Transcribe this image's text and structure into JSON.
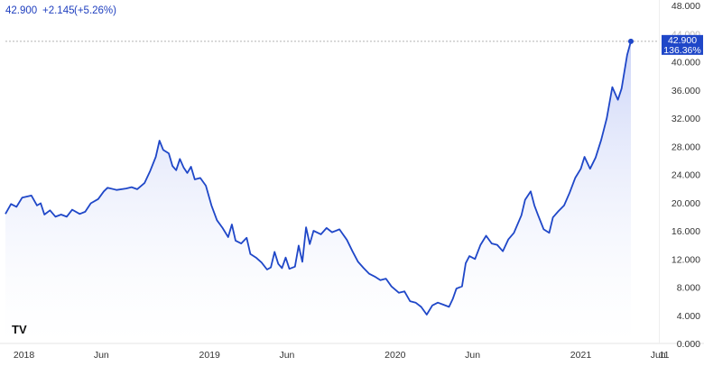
{
  "header": {
    "last_price": "42.900",
    "change": "+2.145",
    "change_percent": "(+5.26%)"
  },
  "price_label": {
    "value": "42.900",
    "percent": "136.36%"
  },
  "watermark": "TV",
  "colors": {
    "line": "#1f47c8",
    "fill_top": "#c9d2f7",
    "fill_bottom": "#ffffff",
    "badge": "#1f47c8",
    "axis": "#e6e6e6",
    "dashed": "#9a9a9a"
  },
  "chart_data": {
    "type": "area",
    "title": "",
    "xlabel": "",
    "ylabel": "",
    "ylim": [
      0,
      48
    ],
    "y_ticks": [
      "48.000",
      "44.000",
      "40.000",
      "36.000",
      "32.000",
      "28.000",
      "24.000",
      "20.000",
      "16.000",
      "12.000",
      "8.000",
      "4.000",
      "0.000"
    ],
    "x_ticks": [
      {
        "label": "2018",
        "t": 2018.0,
        "year": true
      },
      {
        "label": "Jun",
        "t": 2018.417,
        "year": false
      },
      {
        "label": "2019",
        "t": 2019.0,
        "year": true
      },
      {
        "label": "Jun",
        "t": 2019.417,
        "year": false
      },
      {
        "label": "2020",
        "t": 2020.0,
        "year": true
      },
      {
        "label": "Jun",
        "t": 2020.417,
        "year": false
      },
      {
        "label": "2021",
        "t": 2021.0,
        "year": true
      },
      {
        "label": "Jun",
        "t": 2021.417,
        "year": false
      },
      {
        "label": "11",
        "t": 2021.833,
        "year": false
      }
    ],
    "grid": false,
    "last_value": 42.9,
    "series": [
      {
        "values": [
          [
            2017.9,
            18.4
          ],
          [
            2017.93,
            19.8
          ],
          [
            2017.96,
            19.4
          ],
          [
            2017.99,
            20.7
          ],
          [
            2018.04,
            21.0
          ],
          [
            2018.07,
            19.6
          ],
          [
            2018.09,
            19.9
          ],
          [
            2018.11,
            18.3
          ],
          [
            2018.14,
            18.9
          ],
          [
            2018.17,
            18.0
          ],
          [
            2018.2,
            18.3
          ],
          [
            2018.23,
            18.0
          ],
          [
            2018.26,
            19.0
          ],
          [
            2018.3,
            18.4
          ],
          [
            2018.33,
            18.7
          ],
          [
            2018.36,
            19.9
          ],
          [
            2018.4,
            20.5
          ],
          [
            2018.43,
            21.6
          ],
          [
            2018.45,
            22.1
          ],
          [
            2018.5,
            21.8
          ],
          [
            2018.55,
            22.0
          ],
          [
            2018.58,
            22.2
          ],
          [
            2018.61,
            21.9
          ],
          [
            2018.65,
            22.8
          ],
          [
            2018.68,
            24.5
          ],
          [
            2018.71,
            26.5
          ],
          [
            2018.73,
            28.8
          ],
          [
            2018.75,
            27.5
          ],
          [
            2018.78,
            27.0
          ],
          [
            2018.8,
            25.2
          ],
          [
            2018.82,
            24.6
          ],
          [
            2018.84,
            26.2
          ],
          [
            2018.86,
            25.0
          ],
          [
            2018.88,
            24.2
          ],
          [
            2018.9,
            25.1
          ],
          [
            2018.92,
            23.3
          ],
          [
            2018.95,
            23.5
          ],
          [
            2018.98,
            22.4
          ],
          [
            2019.01,
            19.6
          ],
          [
            2019.04,
            17.5
          ],
          [
            2019.07,
            16.4
          ],
          [
            2019.1,
            15.1
          ],
          [
            2019.12,
            16.9
          ],
          [
            2019.14,
            14.6
          ],
          [
            2019.17,
            14.2
          ],
          [
            2019.2,
            15.0
          ],
          [
            2019.22,
            12.7
          ],
          [
            2019.25,
            12.2
          ],
          [
            2019.28,
            11.5
          ],
          [
            2019.31,
            10.5
          ],
          [
            2019.33,
            10.8
          ],
          [
            2019.35,
            13.0
          ],
          [
            2019.37,
            11.3
          ],
          [
            2019.39,
            10.7
          ],
          [
            2019.41,
            12.2
          ],
          [
            2019.43,
            10.6
          ],
          [
            2019.46,
            10.9
          ],
          [
            2019.48,
            13.9
          ],
          [
            2019.5,
            11.6
          ],
          [
            2019.52,
            16.5
          ],
          [
            2019.54,
            14.1
          ],
          [
            2019.56,
            16.0
          ],
          [
            2019.6,
            15.5
          ],
          [
            2019.63,
            16.4
          ],
          [
            2019.66,
            15.8
          ],
          [
            2019.7,
            16.2
          ],
          [
            2019.74,
            14.7
          ],
          [
            2019.77,
            13.1
          ],
          [
            2019.8,
            11.6
          ],
          [
            2019.83,
            10.7
          ],
          [
            2019.86,
            9.9
          ],
          [
            2019.89,
            9.5
          ],
          [
            2019.92,
            9.0
          ],
          [
            2019.95,
            9.2
          ],
          [
            2019.98,
            8.1
          ],
          [
            2020.02,
            7.2
          ],
          [
            2020.05,
            7.4
          ],
          [
            2020.08,
            6.0
          ],
          [
            2020.11,
            5.8
          ],
          [
            2020.14,
            5.2
          ],
          [
            2020.17,
            4.1
          ],
          [
            2020.2,
            5.4
          ],
          [
            2020.23,
            5.8
          ],
          [
            2020.26,
            5.5
          ],
          [
            2020.29,
            5.2
          ],
          [
            2020.31,
            6.3
          ],
          [
            2020.33,
            7.8
          ],
          [
            2020.36,
            8.1
          ],
          [
            2020.38,
            11.4
          ],
          [
            2020.4,
            12.4
          ],
          [
            2020.43,
            12.0
          ],
          [
            2020.46,
            14.0
          ],
          [
            2020.49,
            15.3
          ],
          [
            2020.52,
            14.2
          ],
          [
            2020.55,
            14.0
          ],
          [
            2020.58,
            13.1
          ],
          [
            2020.61,
            14.8
          ],
          [
            2020.64,
            15.7
          ],
          [
            2020.68,
            18.2
          ],
          [
            2020.7,
            20.4
          ],
          [
            2020.73,
            21.6
          ],
          [
            2020.75,
            19.6
          ],
          [
            2020.77,
            18.2
          ],
          [
            2020.8,
            16.2
          ],
          [
            2020.83,
            15.7
          ],
          [
            2020.85,
            17.9
          ],
          [
            2020.88,
            18.8
          ],
          [
            2020.91,
            19.6
          ],
          [
            2020.94,
            21.4
          ],
          [
            2020.97,
            23.5
          ],
          [
            2021.0,
            24.8
          ],
          [
            2021.02,
            26.5
          ],
          [
            2021.05,
            24.8
          ],
          [
            2021.08,
            26.4
          ],
          [
            2021.11,
            28.9
          ],
          [
            2021.14,
            32.0
          ],
          [
            2021.17,
            36.4
          ],
          [
            2021.2,
            34.6
          ],
          [
            2021.22,
            36.2
          ],
          [
            2021.25,
            41.0
          ],
          [
            2021.27,
            42.9
          ]
        ]
      }
    ]
  }
}
